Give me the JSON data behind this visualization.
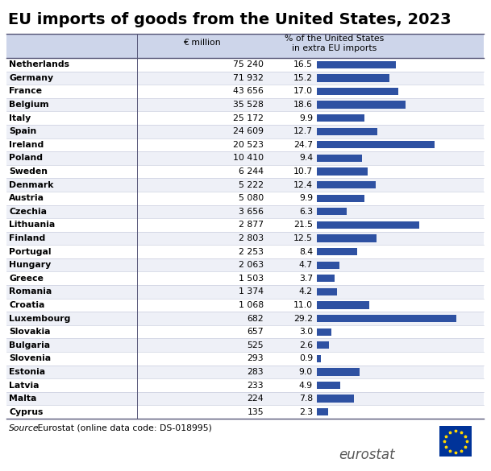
{
  "title": "EU imports of goods from the United States, 2023",
  "col1_header": "€ million",
  "col2_header": "% of the United States\nin extra EU imports",
  "source_text_italic": "Source: ",
  "source_text_normal": " Eurostat (online data code: DS-018995)",
  "countries": [
    "Netherlands",
    "Germany",
    "France",
    "Belgium",
    "Italy",
    "Spain",
    "Ireland",
    "Poland",
    "Sweden",
    "Denmark",
    "Austria",
    "Czechia",
    "Lithuania",
    "Finland",
    "Portugal",
    "Hungary",
    "Greece",
    "Romania",
    "Croatia",
    "Luxembourg",
    "Slovakia",
    "Bulgaria",
    "Slovenia",
    "Estonia",
    "Latvia",
    "Malta",
    "Cyprus"
  ],
  "eur_million_display": [
    "75 240",
    "71 932",
    "43 656",
    "35 528",
    "25 172",
    "24 609",
    "20 523",
    "10 410",
    "6 244",
    "5 222",
    "5 080",
    "3 656",
    "2 877",
    "2 803",
    "2 253",
    "2 063",
    "1 503",
    "1 374",
    "1 068",
    "682",
    "657",
    "525",
    "293",
    "283",
    "233",
    "224",
    "135"
  ],
  "pct_values": [
    16.5,
    15.2,
    17.0,
    18.6,
    9.9,
    12.7,
    24.7,
    9.4,
    10.7,
    12.4,
    9.9,
    6.3,
    21.5,
    12.5,
    8.4,
    4.7,
    3.7,
    4.2,
    11.0,
    29.2,
    3.0,
    2.6,
    0.9,
    9.0,
    4.9,
    7.8,
    2.3
  ],
  "pct_display": [
    "16.5",
    "15.2",
    "17.0",
    "18.6",
    "9.9",
    "12.7",
    "24.7",
    "9.4",
    "10.7",
    "12.4",
    "9.9",
    "6.3",
    "21.5",
    "12.5",
    "8.4",
    "4.7",
    "3.7",
    "4.2",
    "11.0",
    "29.2",
    "3.0",
    "2.6",
    "0.9",
    "9.0",
    "4.9",
    "7.8",
    "2.3"
  ],
  "header_bg": "#cdd5ea",
  "bar_color": "#2e51a2",
  "row_bg_odd": "#ffffff",
  "row_bg_even": "#eef0f7",
  "bar_max_pct": 35.0,
  "title_fontsize": 14,
  "header_fontsize": 7.8,
  "data_fontsize": 7.8,
  "source_fontsize": 7.8,
  "eurostat_fontsize": 12
}
